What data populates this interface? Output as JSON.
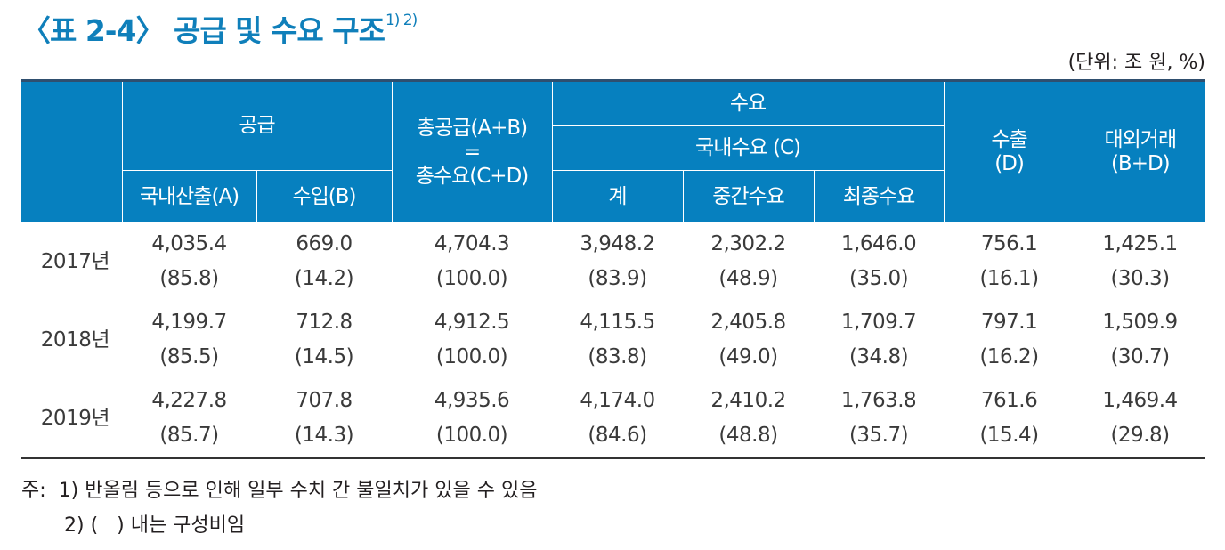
{
  "title": {
    "text": "〈표 2-4〉 공급 및 수요 구조",
    "sup": "1) 2)"
  },
  "unit": "(단위: 조 원, %)",
  "header": {
    "supply": "공급",
    "total_line1": "총공급(A+B)",
    "total_line2": "=",
    "total_line3": "총수요(C+D)",
    "demand": "수요",
    "domestic_demand": "국내수요 (C)",
    "export_line1": "수출",
    "export_line2": "(D)",
    "external_line1": "대외거래",
    "external_line2": "(B+D)",
    "domestic_output": "국내산출(A)",
    "imports": "수입(B)",
    "sum": "계",
    "intermediate": "중간수요",
    "final": "최종수요"
  },
  "rows": [
    {
      "year": "2017년",
      "cells": [
        [
          "4,035.4",
          "(85.8)"
        ],
        [
          "669.0",
          "(14.2)"
        ],
        [
          "4,704.3",
          "(100.0)"
        ],
        [
          "3,948.2",
          "(83.9)"
        ],
        [
          "2,302.2",
          "(48.9)"
        ],
        [
          "1,646.0",
          "(35.0)"
        ],
        [
          "756.1",
          "(16.1)"
        ],
        [
          "1,425.1",
          "(30.3)"
        ]
      ]
    },
    {
      "year": "2018년",
      "cells": [
        [
          "4,199.7",
          "(85.5)"
        ],
        [
          "712.8",
          "(14.5)"
        ],
        [
          "4,912.5",
          "(100.0)"
        ],
        [
          "4,115.5",
          "(83.8)"
        ],
        [
          "2,405.8",
          "(49.0)"
        ],
        [
          "1,709.7",
          "(34.8)"
        ],
        [
          "797.1",
          "(16.2)"
        ],
        [
          "1,509.9",
          "(30.7)"
        ]
      ]
    },
    {
      "year": "2019년",
      "cells": [
        [
          "4,227.8",
          "(85.7)"
        ],
        [
          "707.8",
          "(14.3)"
        ],
        [
          "4,935.6",
          "(100.0)"
        ],
        [
          "4,174.0",
          "(84.6)"
        ],
        [
          "2,410.2",
          "(48.8)"
        ],
        [
          "1,763.8",
          "(35.7)"
        ],
        [
          "761.6",
          "(15.4)"
        ],
        [
          "1,469.4",
          "(29.8)"
        ]
      ]
    }
  ],
  "notes": {
    "line1": "주:  1) 반올림 등으로 인해 일부 수치 간 불일치가 있을 수 있음",
    "line2": "2) (   ) 내는 구성비임"
  },
  "colors": {
    "header_bg": "#0680bf",
    "title": "#0f7fba"
  }
}
